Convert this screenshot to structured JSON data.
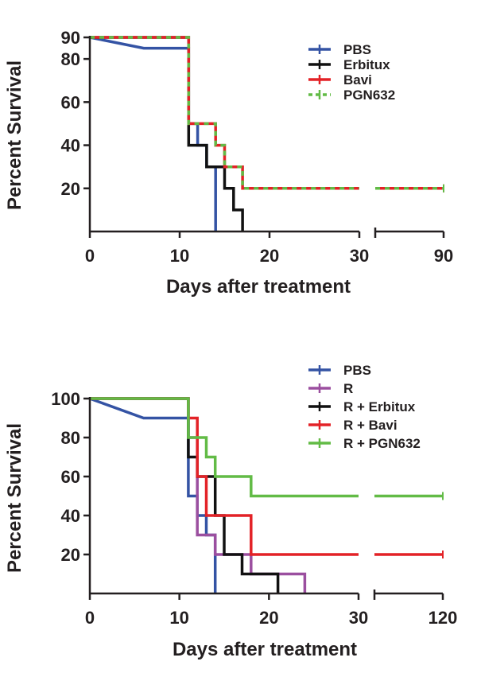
{
  "chart_data": [
    {
      "type": "line",
      "subtype": "kaplan-meier step",
      "xlabel": "Days after treatment",
      "ylabel": "Percent Survival",
      "ylim": [
        0,
        90
      ],
      "yticks": [
        20,
        40,
        60,
        80,
        90
      ],
      "xticks": [
        "0",
        "10",
        "20",
        "30",
        "90"
      ],
      "x_axis_break": {
        "segments": [
          [
            0,
            30
          ],
          [
            90,
            90
          ]
        ]
      },
      "legend_position": "top-right",
      "series": [
        {
          "name": "PBS",
          "color": "#3453a4",
          "style": "solid",
          "steps": [
            [
              0,
              90
            ],
            [
              6,
              85
            ],
            [
              11,
              85
            ],
            [
              11,
              50
            ],
            [
              12,
              50
            ],
            [
              12,
              40
            ],
            [
              13,
              40
            ],
            [
              13,
              30
            ],
            [
              14,
              30
            ],
            [
              14,
              0
            ]
          ]
        },
        {
          "name": "Erbitux",
          "color": "#111111",
          "style": "solid",
          "steps": [
            [
              0,
              90
            ],
            [
              11,
              90
            ],
            [
              11,
              40
            ],
            [
              13,
              40
            ],
            [
              13,
              30
            ],
            [
              15,
              30
            ],
            [
              15,
              20
            ],
            [
              16,
              20
            ],
            [
              16,
              10
            ],
            [
              17,
              10
            ],
            [
              17,
              0
            ]
          ]
        },
        {
          "name": "Bavi",
          "color": "#e32227",
          "style": "solid",
          "steps": [
            [
              0,
              90
            ],
            [
              11,
              90
            ],
            [
              11,
              50
            ],
            [
              14,
              50
            ],
            [
              14,
              40
            ],
            [
              15,
              40
            ],
            [
              15,
              30
            ],
            [
              17,
              30
            ],
            [
              17,
              20
            ],
            [
              30,
              20
            ],
            [
              90,
              20
            ]
          ]
        },
        {
          "name": "PGN632",
          "color": "#62bb46",
          "style": "dashed",
          "steps": [
            [
              0,
              90
            ],
            [
              11,
              90
            ],
            [
              11,
              50
            ],
            [
              14,
              50
            ],
            [
              14,
              40
            ],
            [
              15,
              40
            ],
            [
              15,
              30
            ],
            [
              17,
              30
            ],
            [
              17,
              20
            ],
            [
              30,
              20
            ],
            [
              90,
              20
            ]
          ]
        }
      ]
    },
    {
      "type": "line",
      "subtype": "kaplan-meier step",
      "xlabel": "Days after treatment",
      "ylabel": "Percent Survival",
      "ylim": [
        0,
        100
      ],
      "yticks": [
        20,
        40,
        60,
        80,
        100
      ],
      "xticks": [
        "0",
        "10",
        "20",
        "30",
        "120"
      ],
      "x_axis_break": {
        "segments": [
          [
            0,
            30
          ],
          [
            120,
            120
          ]
        ]
      },
      "legend_position": "top-right",
      "series": [
        {
          "name": "PBS",
          "color": "#3453a4",
          "steps": [
            [
              0,
              100
            ],
            [
              6,
              90
            ],
            [
              11,
              90
            ],
            [
              11,
              50
            ],
            [
              12,
              50
            ],
            [
              12,
              40
            ],
            [
              13,
              40
            ],
            [
              13,
              30
            ],
            [
              14,
              30
            ],
            [
              14,
              0
            ]
          ]
        },
        {
          "name": "R",
          "color": "#9b4f9f",
          "steps": [
            [
              0,
              100
            ],
            [
              11,
              100
            ],
            [
              11,
              80
            ],
            [
              12,
              80
            ],
            [
              12,
              30
            ],
            [
              14,
              30
            ],
            [
              14,
              20
            ],
            [
              18,
              20
            ],
            [
              18,
              10
            ],
            [
              24,
              10
            ],
            [
              24,
              0
            ]
          ]
        },
        {
          "name": "R + Erbitux",
          "color": "#111111",
          "steps": [
            [
              0,
              100
            ],
            [
              11,
              100
            ],
            [
              11,
              70
            ],
            [
              12,
              70
            ],
            [
              12,
              60
            ],
            [
              14,
              60
            ],
            [
              14,
              40
            ],
            [
              15,
              40
            ],
            [
              15,
              20
            ],
            [
              17,
              20
            ],
            [
              17,
              10
            ],
            [
              21,
              10
            ],
            [
              21,
              0
            ]
          ]
        },
        {
          "name": "R + Bavi",
          "color": "#e32227",
          "steps": [
            [
              0,
              100
            ],
            [
              11,
              100
            ],
            [
              11,
              90
            ],
            [
              12,
              90
            ],
            [
              12,
              60
            ],
            [
              13,
              60
            ],
            [
              13,
              40
            ],
            [
              18,
              40
            ],
            [
              18,
              20
            ],
            [
              30,
              20
            ],
            [
              120,
              20
            ]
          ]
        },
        {
          "name": "R + PGN632",
          "color": "#62bb46",
          "steps": [
            [
              0,
              100
            ],
            [
              11,
              100
            ],
            [
              11,
              80
            ],
            [
              13,
              80
            ],
            [
              13,
              70
            ],
            [
              14,
              70
            ],
            [
              14,
              60
            ],
            [
              18,
              60
            ],
            [
              18,
              50
            ],
            [
              30,
              50
            ],
            [
              120,
              50
            ]
          ]
        }
      ]
    }
  ]
}
